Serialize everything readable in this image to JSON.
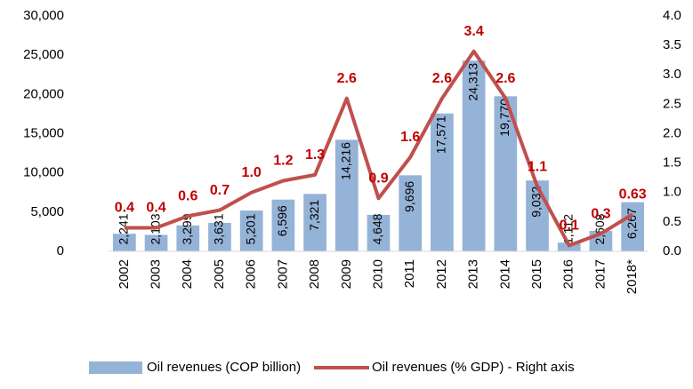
{
  "chart_data": {
    "type": "bar-line",
    "categories": [
      "2002",
      "2003",
      "2004",
      "2005",
      "2006",
      "2007",
      "2008",
      "2009",
      "2010",
      "2011",
      "2012",
      "2013",
      "2014",
      "2015",
      "2016",
      "2017",
      "2018*"
    ],
    "series": [
      {
        "name": "Oil revenues (COP billion)",
        "type": "bar",
        "color": "#95b3d7",
        "values": [
          2241,
          2103,
          3299,
          3631,
          5201,
          6596,
          7321,
          14216,
          4648,
          9696,
          17571,
          24313,
          19770,
          9032,
          1112,
          2608,
          6267
        ],
        "value_labels": [
          "2,241",
          "2,103",
          "3,299",
          "3,631",
          "5,201",
          "6,596",
          "7,321",
          "14,216",
          "4,648",
          "9,696",
          "17,571",
          "24,313",
          "19,770",
          "9,032",
          "1,112",
          "2,608",
          "6,267"
        ]
      },
      {
        "name": "Oil revenues (% GDP) - Right axis",
        "type": "line",
        "color": "#c0504d",
        "axis": "y2",
        "values": [
          0.4,
          0.4,
          0.6,
          0.7,
          1.0,
          1.2,
          1.3,
          2.6,
          0.9,
          1.6,
          2.6,
          3.4,
          2.6,
          1.1,
          0.1,
          0.3,
          0.63
        ],
        "value_labels": [
          "0.4",
          "0.4",
          "0.6",
          "0.7",
          "1.0",
          "1.2",
          "1.3",
          "2.6",
          "0.9",
          "1.6",
          "2.6",
          "3.4",
          "2.6",
          "1.1",
          "0.1",
          "0.3",
          "0.63"
        ]
      }
    ],
    "ylim": [
      0,
      30000
    ],
    "yticks": [
      0,
      {
        "value": 5000,
        "label": "5,000"
      },
      {
        "value": 10000,
        "label": "10,000"
      },
      {
        "value": 15000,
        "label": "15,000"
      },
      {
        "value": 20000,
        "label": "20,000"
      },
      {
        "value": 25000,
        "label": "25,000"
      },
      {
        "value": 30000,
        "label": "30,000"
      }
    ],
    "y2lim": [
      0,
      4
    ],
    "y2ticks": [
      {
        "value": 0,
        "label": "0.0"
      },
      0.5,
      {
        "value": 1,
        "label": "1.0"
      },
      1.5,
      {
        "value": 2,
        "label": "2.0"
      },
      2.5,
      {
        "value": 3,
        "label": "3.0"
      },
      3.5,
      {
        "value": 4,
        "label": "4.0"
      }
    ],
    "legend": "bottom"
  }
}
